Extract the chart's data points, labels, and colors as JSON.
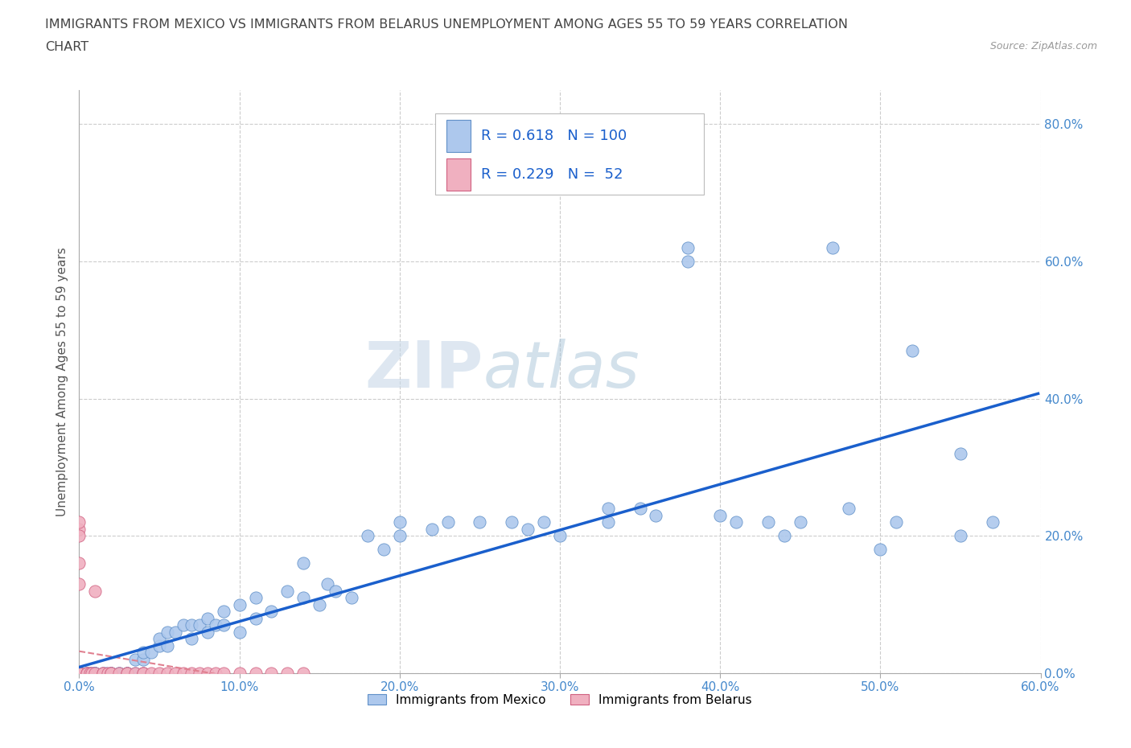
{
  "title_line1": "IMMIGRANTS FROM MEXICO VS IMMIGRANTS FROM BELARUS UNEMPLOYMENT AMONG AGES 55 TO 59 YEARS CORRELATION",
  "title_line2": "CHART",
  "source": "Source: ZipAtlas.com",
  "ylabel": "Unemployment Among Ages 55 to 59 years",
  "xlim": [
    0.0,
    0.6
  ],
  "ylim": [
    0.0,
    0.85
  ],
  "xticks": [
    0.0,
    0.1,
    0.2,
    0.3,
    0.4,
    0.5,
    0.6
  ],
  "yticks": [
    0.0,
    0.2,
    0.4,
    0.6,
    0.8
  ],
  "xtick_labels": [
    "0.0%",
    "10.0%",
    "20.0%",
    "30.0%",
    "40.0%",
    "50.0%",
    "60.0%"
  ],
  "ytick_labels": [
    "0.0%",
    "20.0%",
    "40.0%",
    "60.0%",
    "80.0%"
  ],
  "mexico_color": "#adc8ed",
  "belarus_color": "#f0b0c0",
  "mexico_edge_color": "#6090c8",
  "belarus_edge_color": "#d06080",
  "regression_line_mexico_color": "#1a5fcc",
  "regression_line_belarus_color": "#e08090",
  "R_mexico": 0.618,
  "N_mexico": 100,
  "R_belarus": 0.229,
  "N_belarus": 52,
  "legend_label_mexico": "Immigrants from Mexico",
  "legend_label_belarus": "Immigrants from Belarus",
  "watermark_zip": "ZIP",
  "watermark_atlas": "atlas",
  "background_color": "#ffffff",
  "grid_color": "#cccccc",
  "title_color": "#444444",
  "axis_label_color": "#555555",
  "tick_label_color": "#4488cc",
  "stats_color": "#1a5fcc",
  "mexico_x": [
    0.0,
    0.0,
    0.0,
    0.0,
    0.0,
    0.0,
    0.0,
    0.0,
    0.0,
    0.0,
    0.0,
    0.0,
    0.0,
    0.0,
    0.0,
    0.0,
    0.0,
    0.0,
    0.0,
    0.0,
    0.005,
    0.005,
    0.007,
    0.008,
    0.01,
    0.01,
    0.01,
    0.01,
    0.015,
    0.017,
    0.02,
    0.02,
    0.02,
    0.025,
    0.025,
    0.03,
    0.03,
    0.03,
    0.035,
    0.035,
    0.04,
    0.04,
    0.04,
    0.045,
    0.05,
    0.05,
    0.055,
    0.055,
    0.06,
    0.065,
    0.07,
    0.07,
    0.075,
    0.08,
    0.08,
    0.085,
    0.09,
    0.09,
    0.1,
    0.1,
    0.11,
    0.11,
    0.12,
    0.13,
    0.14,
    0.14,
    0.15,
    0.155,
    0.16,
    0.17,
    0.18,
    0.19,
    0.2,
    0.2,
    0.22,
    0.23,
    0.25,
    0.27,
    0.28,
    0.29,
    0.3,
    0.33,
    0.33,
    0.35,
    0.36,
    0.38,
    0.38,
    0.4,
    0.41,
    0.43,
    0.44,
    0.45,
    0.47,
    0.48,
    0.5,
    0.51,
    0.52,
    0.55,
    0.55,
    0.57
  ],
  "mexico_y": [
    0.0,
    0.0,
    0.0,
    0.0,
    0.0,
    0.0,
    0.0,
    0.0,
    0.0,
    0.0,
    0.0,
    0.0,
    0.0,
    0.0,
    0.0,
    0.0,
    0.0,
    0.0,
    0.0,
    0.0,
    0.0,
    0.0,
    0.0,
    0.0,
    0.0,
    0.0,
    0.0,
    0.0,
    0.0,
    0.0,
    0.0,
    0.0,
    0.0,
    0.0,
    0.0,
    0.0,
    0.0,
    0.0,
    0.0,
    0.02,
    0.0,
    0.02,
    0.03,
    0.03,
    0.04,
    0.05,
    0.04,
    0.06,
    0.06,
    0.07,
    0.05,
    0.07,
    0.07,
    0.06,
    0.08,
    0.07,
    0.07,
    0.09,
    0.06,
    0.1,
    0.08,
    0.11,
    0.09,
    0.12,
    0.11,
    0.16,
    0.1,
    0.13,
    0.12,
    0.11,
    0.2,
    0.18,
    0.2,
    0.22,
    0.21,
    0.22,
    0.22,
    0.22,
    0.21,
    0.22,
    0.2,
    0.24,
    0.22,
    0.24,
    0.23,
    0.62,
    0.6,
    0.23,
    0.22,
    0.22,
    0.2,
    0.22,
    0.62,
    0.24,
    0.18,
    0.22,
    0.47,
    0.2,
    0.32,
    0.22
  ],
  "belarus_x": [
    0.0,
    0.0,
    0.0,
    0.0,
    0.0,
    0.0,
    0.0,
    0.0,
    0.0,
    0.0,
    0.0,
    0.0,
    0.0,
    0.0,
    0.0,
    0.0,
    0.0,
    0.0,
    0.0,
    0.0,
    0.005,
    0.005,
    0.007,
    0.008,
    0.01,
    0.01,
    0.015,
    0.015,
    0.018,
    0.02,
    0.02,
    0.025,
    0.03,
    0.03,
    0.035,
    0.04,
    0.04,
    0.045,
    0.05,
    0.055,
    0.06,
    0.065,
    0.07,
    0.075,
    0.08,
    0.085,
    0.09,
    0.1,
    0.11,
    0.12,
    0.13,
    0.14
  ],
  "belarus_y": [
    0.0,
    0.0,
    0.0,
    0.0,
    0.0,
    0.0,
    0.0,
    0.0,
    0.0,
    0.0,
    0.0,
    0.0,
    0.0,
    0.0,
    0.21,
    0.22,
    0.2,
    0.16,
    0.13,
    0.0,
    0.0,
    0.0,
    0.0,
    0.0,
    0.0,
    0.12,
    0.0,
    0.0,
    0.0,
    0.0,
    0.0,
    0.0,
    0.0,
    0.0,
    0.0,
    0.0,
    0.0,
    0.0,
    0.0,
    0.0,
    0.0,
    0.0,
    0.0,
    0.0,
    0.0,
    0.0,
    0.0,
    0.0,
    0.0,
    0.0,
    0.0,
    0.0
  ]
}
